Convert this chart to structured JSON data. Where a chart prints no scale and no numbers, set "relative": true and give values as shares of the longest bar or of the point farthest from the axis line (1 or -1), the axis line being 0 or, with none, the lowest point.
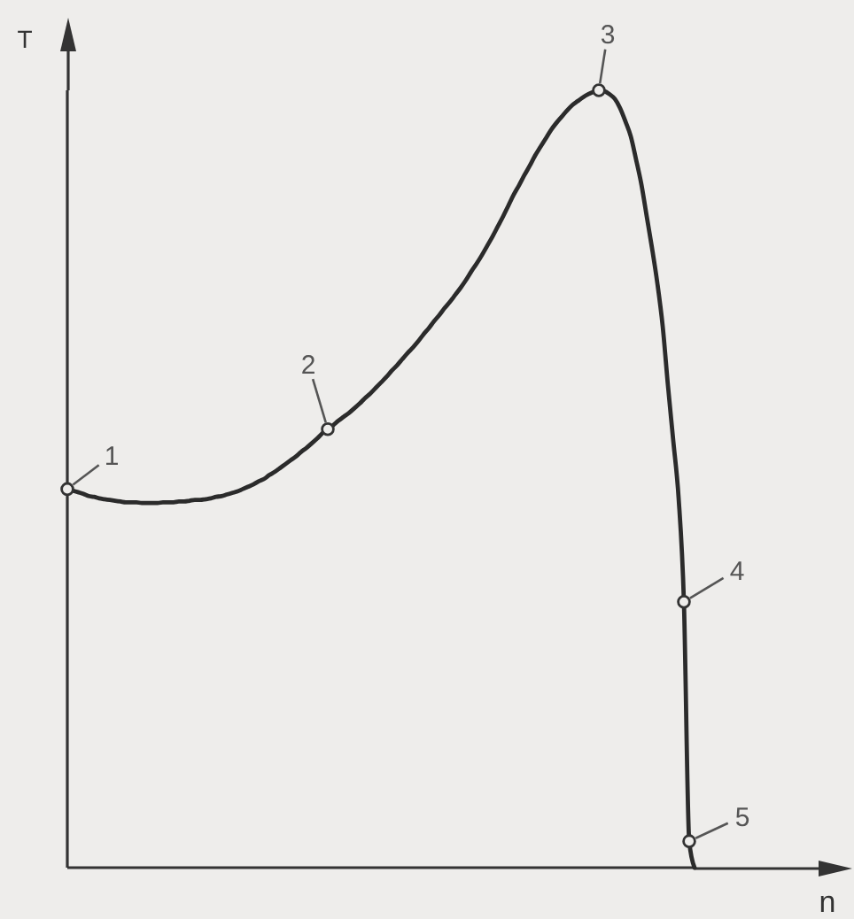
{
  "chart_data": {
    "type": "line",
    "xlabel": "n",
    "ylabel": "T",
    "relative": true,
    "categories": [
      null,
      null,
      null,
      null,
      null,
      null,
      null,
      null,
      null,
      null,
      null,
      null,
      null,
      null,
      null,
      null,
      null,
      null,
      null,
      null,
      null,
      null,
      null,
      null,
      null,
      null,
      null,
      null,
      null,
      null,
      null,
      null,
      null,
      null,
      null,
      null,
      null,
      null,
      null,
      null,
      null,
      null,
      null,
      null,
      null,
      null,
      null,
      null,
      null,
      null,
      null,
      null,
      null,
      null,
      null,
      null,
      null,
      null,
      null,
      null,
      null,
      null,
      null,
      null,
      null,
      null,
      null,
      null,
      null,
      null,
      null,
      null,
      null,
      null,
      null,
      null,
      null,
      null,
      null,
      null,
      null,
      null,
      null,
      null,
      null,
      null,
      null,
      null,
      null,
      null,
      null,
      null,
      null,
      null,
      null,
      null,
      null,
      null,
      null,
      null,
      null,
      null,
      null,
      null,
      null,
      null,
      null,
      null,
      null,
      null,
      null,
      null,
      null,
      null,
      null,
      null,
      null,
      null,
      null
    ],
    "series": [
      {
        "color": "#2b2b2b",
        "values": [
          0.487,
          0.485,
          0.483,
          0.481,
          0.478,
          0.477,
          0.475,
          0.474,
          0.473,
          0.472,
          0.471,
          0.47,
          0.47,
          0.47,
          0.469,
          0.469,
          0.469,
          0.469,
          0.47,
          0.47,
          0.47,
          0.471,
          0.471,
          0.472,
          0.473,
          0.473,
          0.474,
          0.475,
          0.477,
          0.478,
          0.48,
          0.482,
          0.484,
          0.487,
          0.49,
          0.493,
          0.497,
          0.5,
          0.505,
          0.509,
          0.514,
          0.519,
          0.524,
          0.529,
          0.535,
          0.54,
          0.546,
          0.552,
          0.559,
          0.564,
          0.569,
          0.575,
          0.58,
          0.585,
          0.591,
          0.597,
          0.604,
          0.61,
          0.617,
          0.624,
          0.631,
          0.639,
          0.646,
          0.654,
          0.662,
          0.669,
          0.677,
          0.686,
          0.694,
          0.703,
          0.711,
          0.72,
          0.728,
          0.737,
          0.746,
          0.756,
          0.767,
          0.777,
          0.788,
          0.8,
          0.812,
          0.825,
          0.838,
          0.852,
          0.866,
          0.878,
          0.891,
          0.903,
          0.916,
          0.927,
          0.938,
          0.949,
          0.958,
          0.966,
          0.974,
          0.981,
          0.986,
          0.991,
          0.995,
          0.998,
          1.0,
          0.999,
          0.995,
          0.989,
          0.977,
          0.96,
          0.941,
          0.911,
          0.879,
          0.838,
          0.797,
          0.752,
          0.697,
          0.62,
          0.549,
          0.476,
          0.342,
          0.034,
          0
        ]
      }
    ],
    "annotations": [
      "1",
      "2",
      "3",
      "4",
      "5"
    ]
  }
}
